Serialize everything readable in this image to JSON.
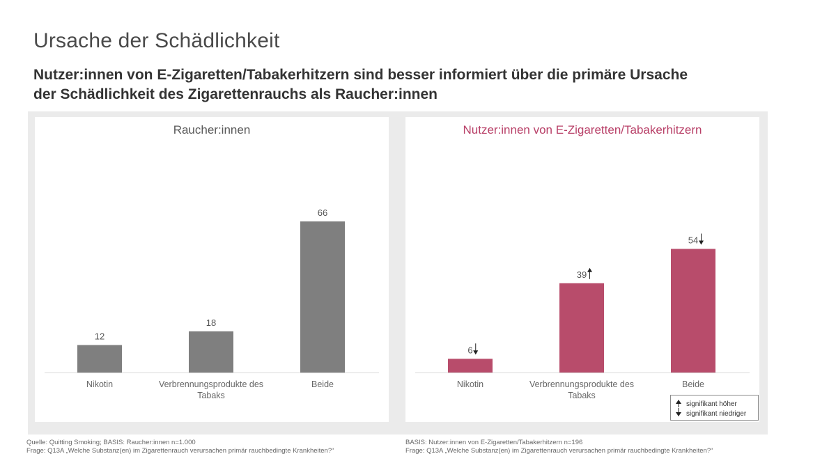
{
  "header": {
    "title": "Ursache der Schädlichkeit",
    "subtitle_line1": "Nutzer:innen von E-Zigaretten/Tabakerhitzern sind besser informiert über die primäre Ursache",
    "subtitle_line2": "der Schädlichkeit des Zigarettenrauchs als Raucher:innen"
  },
  "colors": {
    "left_bar": "#7f7f7f",
    "right_bar": "#b84c6b",
    "left_title": "#595959",
    "right_title": "#b83f67"
  },
  "chart_data": [
    {
      "type": "bar",
      "title": "Raucher:innen",
      "categories": [
        "Nikotin",
        "Verbrennungsprodukte des Tabaks",
        "Beide"
      ],
      "category_lines": [
        [
          "Nikotin"
        ],
        [
          "Verbrennungsprodukte des",
          "Tabaks"
        ],
        [
          "Beide"
        ]
      ],
      "values": [
        12,
        18,
        66
      ],
      "value_labels": [
        "12",
        "18",
        "66"
      ],
      "significance": [
        "",
        "",
        ""
      ],
      "xlabel": "",
      "ylabel": "",
      "ylim": [
        0,
        66
      ],
      "grid": false
    },
    {
      "type": "bar",
      "title": "Nutzer:innen von E-Zigaretten/Tabakerhitzern",
      "categories": [
        "Nikotin",
        "Verbrennungsprodukte des Tabaks",
        "Beide"
      ],
      "category_lines": [
        [
          "Nikotin"
        ],
        [
          "Verbrennungsprodukte des",
          "Tabaks"
        ],
        [
          "Beide"
        ]
      ],
      "values": [
        6,
        39,
        54
      ],
      "value_labels": [
        "6",
        "39",
        "54"
      ],
      "significance": [
        "down",
        "up",
        "down"
      ],
      "xlabel": "",
      "ylabel": "",
      "ylim": [
        0,
        66
      ],
      "grid": false
    }
  ],
  "legend": {
    "higher": "signifikant höher",
    "lower": "signifikant niedriger"
  },
  "footnotes": {
    "left_line1": "Quelle: Quitting Smoking; BASIS: Raucher:innen n=1.000",
    "left_line2": "Frage: Q13A „Welche Substanz(en) im Zigarettenrauch verursachen primär rauchbedingte Krankheiten?“",
    "right_line1": "BASIS: Nutzer:innen von E-Zigaretten/Tabakerhitzern n=196",
    "right_line2": "Frage: Q13A „Welche Substanz(en) im Zigarettenrauch verursachen primär rauchbedingte Krankheiten?“"
  }
}
